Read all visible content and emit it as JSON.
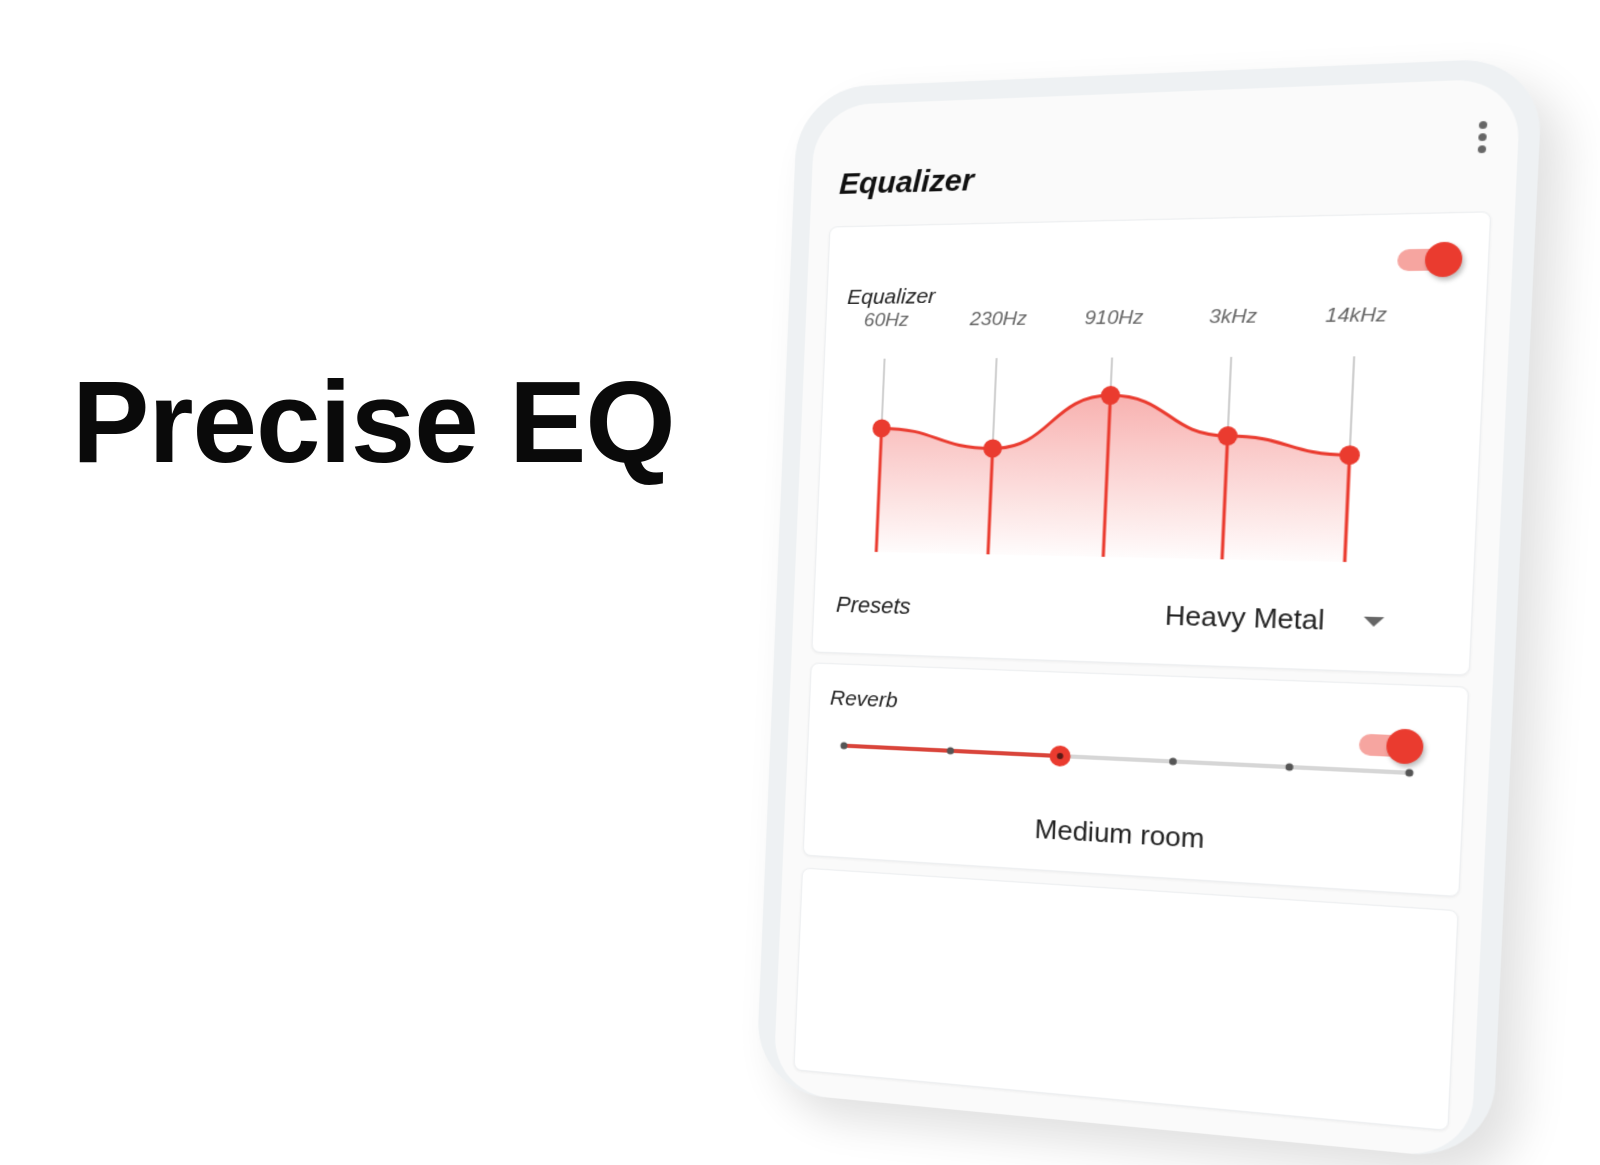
{
  "headline": "Precise EQ",
  "app": {
    "title": "Equalizer",
    "menu_icon": "more-vert-icon",
    "accent": "#ea3b2f",
    "accent_light": "#f6a5a0"
  },
  "equalizer": {
    "label": "Equalizer",
    "enabled": true,
    "bands": [
      {
        "label": "60Hz",
        "level": 0.64
      },
      {
        "label": "230Hz",
        "level": 0.54
      },
      {
        "label": "910Hz",
        "level": 0.81
      },
      {
        "label": "3kHz",
        "level": 0.61
      },
      {
        "label": "14kHz",
        "level": 0.52
      }
    ],
    "presets_label": "Presets",
    "preset_value": "Heavy Metal"
  },
  "reverb": {
    "label": "Reverb",
    "enabled": true,
    "steps": 6,
    "selected_index": 2,
    "selected_name": "Medium room"
  }
}
